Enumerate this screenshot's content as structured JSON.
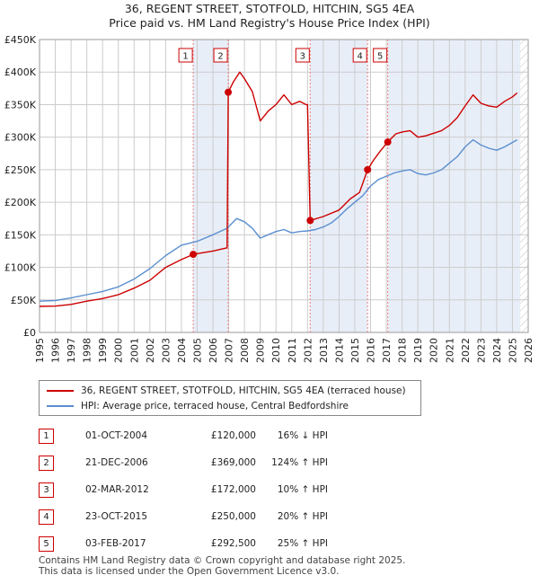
{
  "title": {
    "line1": "36, REGENT STREET, STOTFOLD, HITCHIN, SG5 4EA",
    "line2": "Price paid vs. HM Land Registry's House Price Index (HPI)"
  },
  "legend": {
    "property": "36, REGENT STREET, STOTFOLD, HITCHIN, SG5 4EA (terraced house)",
    "hpi": "HPI: Average price, terraced house, Central Bedfordshire"
  },
  "colors": {
    "property": "#cc0000",
    "hpi": "#5b8fd0",
    "shade": "#e8eef8",
    "grid": "#cccccc",
    "marker_line": "#e88080"
  },
  "sales": [
    {
      "num": "1",
      "date": "01-OCT-2004",
      "price": "£120,000",
      "hpi_rel": "16% ↓ HPI"
    },
    {
      "num": "2",
      "date": "21-DEC-2006",
      "price": "£369,000",
      "hpi_rel": "124% ↑ HPI"
    },
    {
      "num": "3",
      "date": "02-MAR-2012",
      "price": "£172,000",
      "hpi_rel": "10% ↑ HPI"
    },
    {
      "num": "4",
      "date": "23-OCT-2015",
      "price": "£250,000",
      "hpi_rel": "20% ↑ HPI"
    },
    {
      "num": "5",
      "date": "03-FEB-2017",
      "price": "£292,500",
      "hpi_rel": "25% ↑ HPI"
    }
  ],
  "footer": {
    "line1": "Contains HM Land Registry data © Crown copyright and database right 2025.",
    "line2": "This data is licensed under the Open Government Licence v3.0."
  },
  "chart_data": {
    "type": "line",
    "title": "36, REGENT STREET, STOTFOLD, HITCHIN, SG5 4EA — Price paid vs. HM Land Registry's House Price Index (HPI)",
    "xlim": [
      1995,
      2026
    ],
    "ylim": [
      0,
      450000
    ],
    "x_ticks": [
      1995,
      1996,
      1997,
      1998,
      1999,
      2000,
      2001,
      2002,
      2003,
      2004,
      2005,
      2006,
      2007,
      2008,
      2009,
      2010,
      2011,
      2012,
      2013,
      2014,
      2015,
      2016,
      2017,
      2018,
      2019,
      2020,
      2021,
      2022,
      2023,
      2024,
      2025,
      2026
    ],
    "y_ticks": [
      {
        "value": 0,
        "label": "£0"
      },
      {
        "value": 50000,
        "label": "£50K"
      },
      {
        "value": 100000,
        "label": "£100K"
      },
      {
        "value": 150000,
        "label": "£150K"
      },
      {
        "value": 200000,
        "label": "£200K"
      },
      {
        "value": 250000,
        "label": "£250K"
      },
      {
        "value": 300000,
        "label": "£300K"
      },
      {
        "value": 350000,
        "label": "£350K"
      },
      {
        "value": 400000,
        "label": "£400K"
      },
      {
        "value": 450000,
        "label": "£450K"
      }
    ],
    "shaded_ranges": [
      [
        2004.75,
        2006.97
      ],
      [
        2012.17,
        2015.81
      ],
      [
        2017.09,
        2025.5
      ]
    ],
    "hatch_from": 2025.5,
    "sale_markers": [
      {
        "label": "1",
        "x": 2004.75,
        "y": 120000
      },
      {
        "label": "2",
        "x": 2006.97,
        "y": 369000
      },
      {
        "label": "3",
        "x": 2012.17,
        "y": 172000
      },
      {
        "label": "4",
        "x": 2015.81,
        "y": 250000
      },
      {
        "label": "5",
        "x": 2017.09,
        "y": 292500
      }
    ],
    "series": [
      {
        "name": "36, REGENT STREET, STOTFOLD, HITCHIN, SG5 4EA (terraced house)",
        "points": [
          [
            1995,
            40000
          ],
          [
            1996,
            40500
          ],
          [
            1997,
            43000
          ],
          [
            1998,
            48000
          ],
          [
            1999,
            52000
          ],
          [
            2000,
            58000
          ],
          [
            2001,
            68000
          ],
          [
            2002,
            80000
          ],
          [
            2003,
            100000
          ],
          [
            2004,
            112000
          ],
          [
            2004.75,
            120000
          ],
          [
            2005,
            121000
          ],
          [
            2006,
            125000
          ],
          [
            2006.9,
            130000
          ],
          [
            2006.97,
            369000
          ],
          [
            2007.3,
            385000
          ],
          [
            2007.7,
            400000
          ],
          [
            2008,
            390000
          ],
          [
            2008.5,
            370000
          ],
          [
            2009,
            325000
          ],
          [
            2009.5,
            340000
          ],
          [
            2010,
            350000
          ],
          [
            2010.5,
            365000
          ],
          [
            2011,
            350000
          ],
          [
            2011.5,
            355000
          ],
          [
            2011.9,
            350000
          ],
          [
            2012.0,
            350000
          ],
          [
            2012.17,
            172000
          ],
          [
            2013,
            178000
          ],
          [
            2014,
            188000
          ],
          [
            2014.7,
            205000
          ],
          [
            2015.3,
            215000
          ],
          [
            2015.81,
            250000
          ],
          [
            2016.2,
            265000
          ],
          [
            2016.6,
            278000
          ],
          [
            2017.09,
            292500
          ],
          [
            2017.6,
            305000
          ],
          [
            2018,
            308000
          ],
          [
            2018.5,
            310000
          ],
          [
            2019,
            300000
          ],
          [
            2019.5,
            302000
          ],
          [
            2020,
            306000
          ],
          [
            2020.5,
            310000
          ],
          [
            2021,
            318000
          ],
          [
            2021.5,
            330000
          ],
          [
            2022,
            348000
          ],
          [
            2022.5,
            365000
          ],
          [
            2023,
            352000
          ],
          [
            2023.5,
            348000
          ],
          [
            2024,
            346000
          ],
          [
            2024.5,
            355000
          ],
          [
            2025,
            362000
          ],
          [
            2025.3,
            368000
          ]
        ]
      },
      {
        "name": "HPI: Average price, terraced house, Central Bedfordshire",
        "points": [
          [
            1995,
            48000
          ],
          [
            1996,
            49000
          ],
          [
            1997,
            53000
          ],
          [
            1998,
            58000
          ],
          [
            1999,
            63000
          ],
          [
            2000,
            70000
          ],
          [
            2001,
            82000
          ],
          [
            2002,
            98000
          ],
          [
            2003,
            118000
          ],
          [
            2004,
            134000
          ],
          [
            2005,
            140000
          ],
          [
            2006,
            150000
          ],
          [
            2006.9,
            160000
          ],
          [
            2007.5,
            175000
          ],
          [
            2008,
            170000
          ],
          [
            2008.5,
            160000
          ],
          [
            2009,
            145000
          ],
          [
            2009.5,
            150000
          ],
          [
            2010,
            155000
          ],
          [
            2010.5,
            158000
          ],
          [
            2011,
            153000
          ],
          [
            2011.5,
            155000
          ],
          [
            2012,
            156000
          ],
          [
            2012.5,
            158000
          ],
          [
            2013,
            162000
          ],
          [
            2013.5,
            168000
          ],
          [
            2014,
            178000
          ],
          [
            2014.5,
            190000
          ],
          [
            2015,
            200000
          ],
          [
            2015.5,
            210000
          ],
          [
            2016,
            225000
          ],
          [
            2016.5,
            235000
          ],
          [
            2017,
            240000
          ],
          [
            2017.5,
            245000
          ],
          [
            2018,
            248000
          ],
          [
            2018.5,
            250000
          ],
          [
            2019,
            244000
          ],
          [
            2019.5,
            242000
          ],
          [
            2020,
            245000
          ],
          [
            2020.5,
            250000
          ],
          [
            2021,
            260000
          ],
          [
            2021.5,
            270000
          ],
          [
            2022,
            285000
          ],
          [
            2022.5,
            296000
          ],
          [
            2023,
            288000
          ],
          [
            2023.5,
            283000
          ],
          [
            2024,
            280000
          ],
          [
            2024.5,
            285000
          ],
          [
            2025,
            292000
          ],
          [
            2025.3,
            296000
          ]
        ]
      }
    ]
  }
}
